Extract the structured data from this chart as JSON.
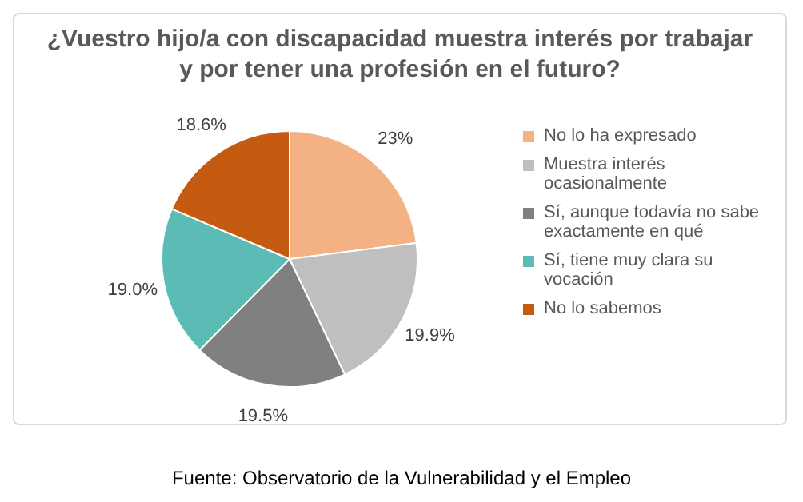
{
  "chart_data": {
    "type": "pie",
    "title": "¿Vuestro hijo/a con discapacidad muestra interés por trabajar y por tener una profesión en el futuro?",
    "categories": [
      "No lo ha expresado",
      "Muestra interés ocasionalmente",
      "Sí, aunque todavía no sabe exactamente en qué",
      "Sí, tiene muy clara su vocación",
      "No lo sabemos"
    ],
    "values": [
      23,
      19.9,
      19.5,
      19.0,
      18.6
    ],
    "value_labels": [
      "23%",
      "19.9%",
      "19.5%",
      "19.0%",
      "18.6%"
    ],
    "colors": [
      "#f4b183",
      "#bfbfbf",
      "#808080",
      "#5bbcb6",
      "#c55a11"
    ],
    "legend": "right",
    "annotations": [
      "Fuente: Observatorio de la Vulnerabilidad y el Empleo"
    ]
  }
}
